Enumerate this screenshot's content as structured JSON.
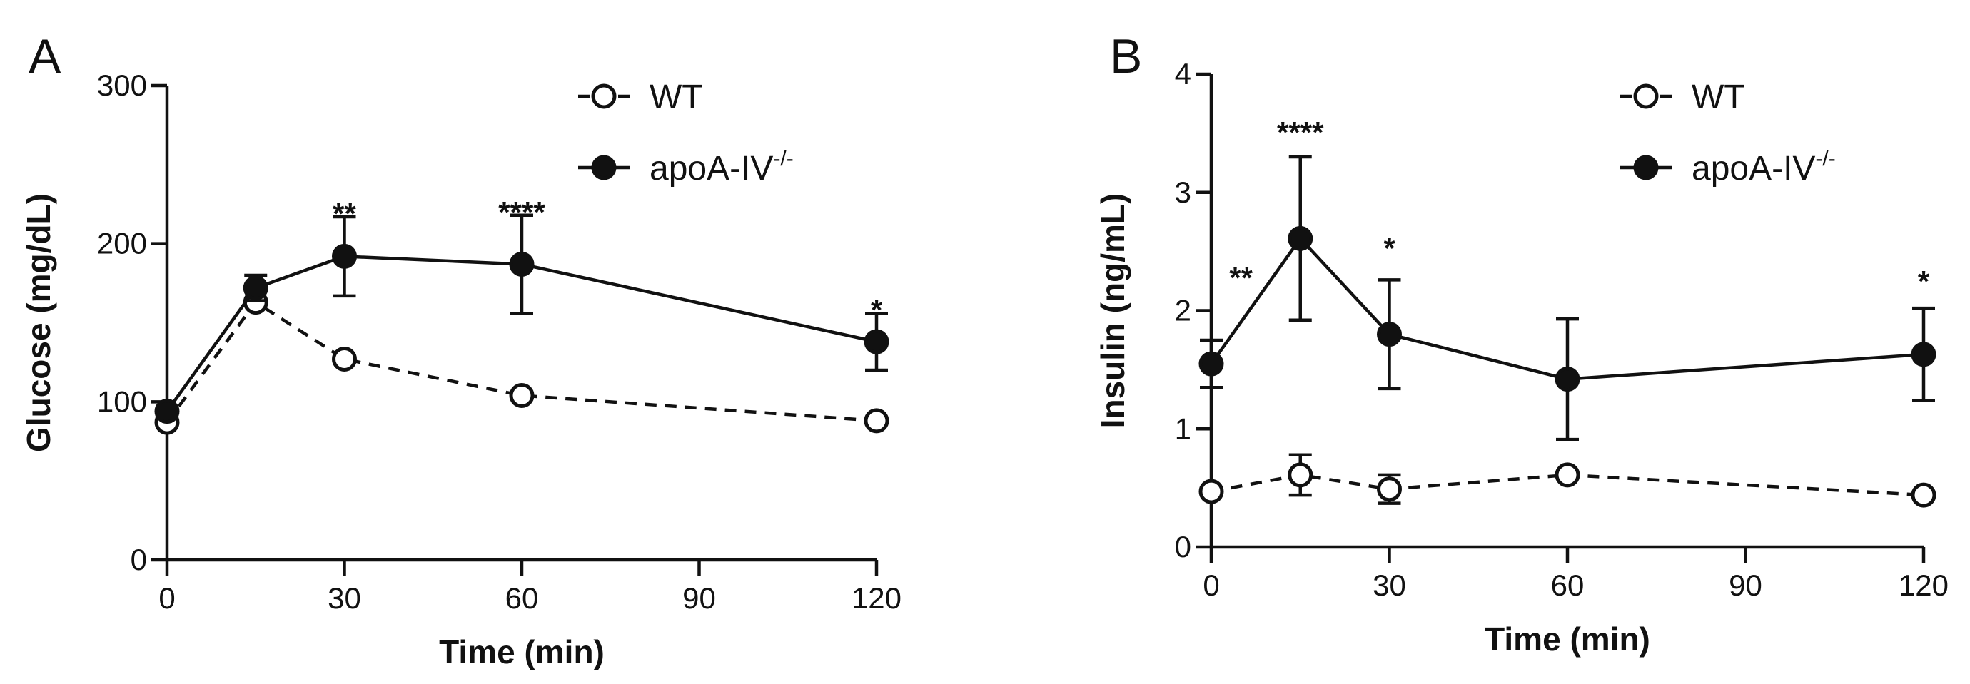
{
  "chart_data": [
    {
      "panel": "A",
      "type": "line",
      "xlabel": "Time (min)",
      "ylabel": "Glucose (mg/dL)",
      "xlim": [
        0,
        120
      ],
      "ylim": [
        0,
        300
      ],
      "xticks": [
        0,
        30,
        60,
        90,
        120
      ],
      "yticks": [
        0,
        100,
        200,
        300
      ],
      "legend": "top-right",
      "series": [
        {
          "name": "WT",
          "style": "dashed-open",
          "x": [
            0,
            15,
            30,
            60,
            120
          ],
          "values": [
            87,
            163,
            127,
            104,
            88
          ],
          "errors": [
            0,
            0,
            0,
            0,
            0
          ]
        },
        {
          "name": "apoA-IV",
          "name_sup": "-/-",
          "style": "solid-filled",
          "x": [
            0,
            15,
            30,
            60,
            120
          ],
          "values": [
            94,
            172,
            192,
            187,
            138
          ],
          "errors": [
            0,
            8,
            25,
            31,
            18
          ]
        }
      ],
      "annotations": [
        {
          "x": 30,
          "y": 217,
          "text": "**"
        },
        {
          "x": 60,
          "y": 218,
          "text": "****"
        },
        {
          "x": 120,
          "y": 156,
          "text": "*"
        }
      ]
    },
    {
      "panel": "B",
      "type": "line",
      "xlabel": "Time (min)",
      "ylabel": "Insulin (ng/mL)",
      "xlim": [
        0,
        120
      ],
      "ylim": [
        0,
        4
      ],
      "xticks": [
        0,
        30,
        60,
        90,
        120
      ],
      "yticks": [
        0,
        1,
        2,
        3,
        4
      ],
      "legend": "top-right",
      "series": [
        {
          "name": "WT",
          "style": "dashed-open",
          "x": [
            0,
            15,
            30,
            60,
            120
          ],
          "values": [
            0.47,
            0.61,
            0.49,
            0.61,
            0.44
          ],
          "errors": [
            0,
            0.17,
            0.12,
            0,
            0
          ]
        },
        {
          "name": "apoA-IV",
          "name_sup": "-/-",
          "style": "solid-filled",
          "x": [
            0,
            15,
            30,
            60,
            120
          ],
          "values": [
            1.55,
            2.61,
            1.8,
            1.42,
            1.63
          ],
          "errors": [
            0.2,
            0.69,
            0.46,
            0.51,
            0.39
          ]
        }
      ],
      "annotations": [
        {
          "x": 5,
          "y": 2.25,
          "text": "**"
        },
        {
          "x": 15,
          "y": 3.48,
          "text": "****"
        },
        {
          "x": 30,
          "y": 2.5,
          "text": "*"
        },
        {
          "x": 120,
          "y": 2.22,
          "text": "*"
        }
      ]
    }
  ],
  "colors": {
    "ink": "#111111",
    "background": "#ffffff"
  }
}
